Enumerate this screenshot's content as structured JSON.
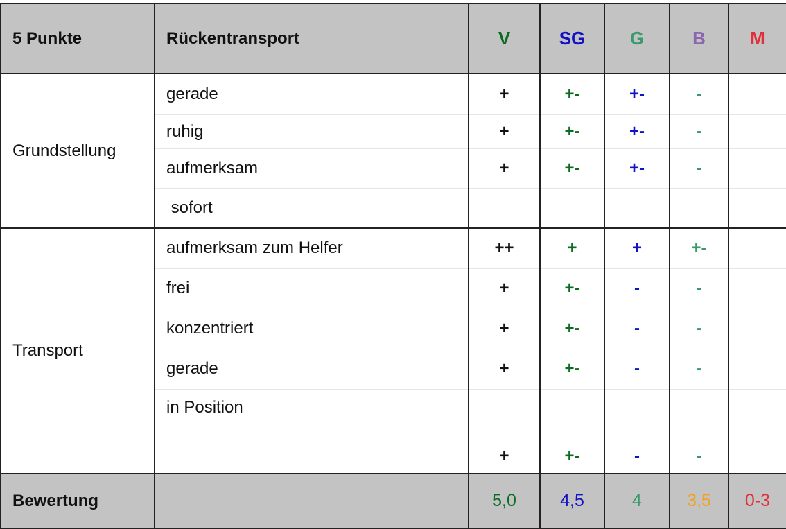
{
  "header": {
    "points": "5 Punkte",
    "exercise": "Rückentransport",
    "grades": [
      {
        "label": "V",
        "color": "#0b6b22"
      },
      {
        "label": "SG",
        "color": "#1212c4"
      },
      {
        "label": "G",
        "color": "#3a9a6c"
      },
      {
        "label": "B",
        "color": "#8a68b0"
      },
      {
        "label": "M",
        "color": "#e0303c"
      }
    ]
  },
  "groups": [
    {
      "name": "Grundstellung",
      "rows": [
        {
          "criterion": "gerade",
          "marks": [
            "+",
            "+-",
            "+-",
            "-",
            ""
          ],
          "colors": [
            "#111111",
            "#0b6b22",
            "#1212c4",
            "#3a9a6c",
            "#111111"
          ]
        },
        {
          "criterion": "ruhig",
          "marks": [
            "+",
            "+-",
            "+-",
            "-",
            ""
          ],
          "colors": [
            "#111111",
            "#0b6b22",
            "#1212c4",
            "#3a9a6c",
            "#111111"
          ]
        },
        {
          "criterion": "aufmerksam",
          "marks": [
            "+",
            "+-",
            "+-",
            "-",
            ""
          ],
          "colors": [
            "#111111",
            "#0b6b22",
            "#1212c4",
            "#3a9a6c",
            "#111111"
          ]
        },
        {
          "criterion": " sofort",
          "marks": [
            "",
            "",
            "",
            "",
            ""
          ],
          "colors": [
            "#111111",
            "#111111",
            "#111111",
            "#111111",
            "#111111"
          ]
        }
      ]
    },
    {
      "name": "Transport",
      "rows": [
        {
          "criterion": "aufmerksam zum Helfer",
          "marks": [
            "++",
            "+",
            "+",
            "+-",
            ""
          ],
          "colors": [
            "#111111",
            "#0b6b22",
            "#1212c4",
            "#3a9a6c",
            "#111111"
          ]
        },
        {
          "criterion": "frei",
          "marks": [
            "+",
            "+-",
            "-",
            "-",
            ""
          ],
          "colors": [
            "#111111",
            "#0b6b22",
            "#1212c4",
            "#3a9a6c",
            "#111111"
          ]
        },
        {
          "criterion": "konzentriert",
          "marks": [
            "+",
            "+-",
            "-",
            "-",
            ""
          ],
          "colors": [
            "#111111",
            "#0b6b22",
            "#1212c4",
            "#3a9a6c",
            "#111111"
          ]
        },
        {
          "criterion": "gerade",
          "marks": [
            "+",
            "+-",
            "-",
            "-",
            ""
          ],
          "colors": [
            "#111111",
            "#0b6b22",
            "#1212c4",
            "#3a9a6c",
            "#111111"
          ]
        },
        {
          "criterion": "in Position",
          "marks": [
            "",
            "",
            "",
            "",
            ""
          ],
          "colors": [
            "#111111",
            "#111111",
            "#111111",
            "#111111",
            "#111111"
          ]
        },
        {
          "criterion": "",
          "marks": [
            "+",
            "+-",
            "-",
            "-",
            ""
          ],
          "colors": [
            "#111111",
            "#0b6b22",
            "#1212c4",
            "#3a9a6c",
            "#111111"
          ]
        }
      ]
    }
  ],
  "footer": {
    "label": "Bewertung",
    "scores": [
      {
        "value": "5,0",
        "color": "#0b6b22"
      },
      {
        "value": "4,5",
        "color": "#1212c4"
      },
      {
        "value": "4",
        "color": "#3a9a6c"
      },
      {
        "value": "3,5",
        "color": "#f5a020"
      },
      {
        "value": "0-3",
        "color": "#e0303c"
      }
    ]
  }
}
